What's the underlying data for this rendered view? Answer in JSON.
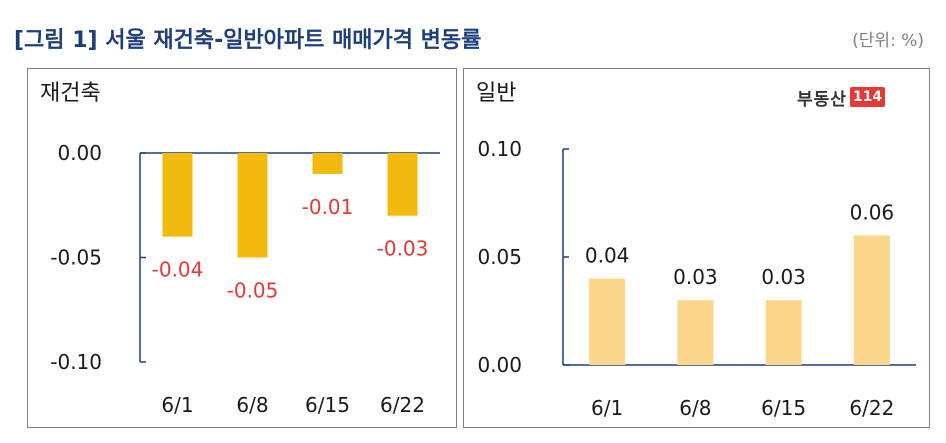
{
  "title": "[그림 1] 서울 재건축-일반아파트 매매가격 변동률",
  "unit": "(단위: %)",
  "logo": {
    "text": "부동산",
    "badge": "114"
  },
  "colors": {
    "reconstruction_bar": "#f2b90f",
    "general_bar": "#fcd68a",
    "negative_label": "#e53935",
    "axis": "#1f3f7a",
    "title": "#1f3f7a"
  },
  "chart_data": [
    {
      "type": "bar",
      "label": "재건축",
      "categories": [
        "6/1",
        "6/8",
        "6/15",
        "6/22"
      ],
      "values": [
        -0.04,
        -0.05,
        -0.01,
        -0.03
      ],
      "value_labels": [
        "-0.04",
        "-0.05",
        "-0.01",
        "-0.03"
      ],
      "ylim": [
        -0.1,
        0.0
      ],
      "yticks": [
        "0.00",
        "-0.05",
        "-0.10"
      ],
      "ytick_values": [
        0.0,
        -0.05,
        -0.1
      ],
      "grid": false
    },
    {
      "type": "bar",
      "label": "일반",
      "categories": [
        "6/1",
        "6/8",
        "6/15",
        "6/22"
      ],
      "values": [
        0.04,
        0.03,
        0.03,
        0.06
      ],
      "value_labels": [
        "0.04",
        "0.03",
        "0.03",
        "0.06"
      ],
      "ylim": [
        0.0,
        0.1
      ],
      "yticks": [
        "0.10",
        "0.05",
        "0.00"
      ],
      "ytick_values": [
        0.1,
        0.05,
        0.0
      ],
      "grid": false
    }
  ]
}
